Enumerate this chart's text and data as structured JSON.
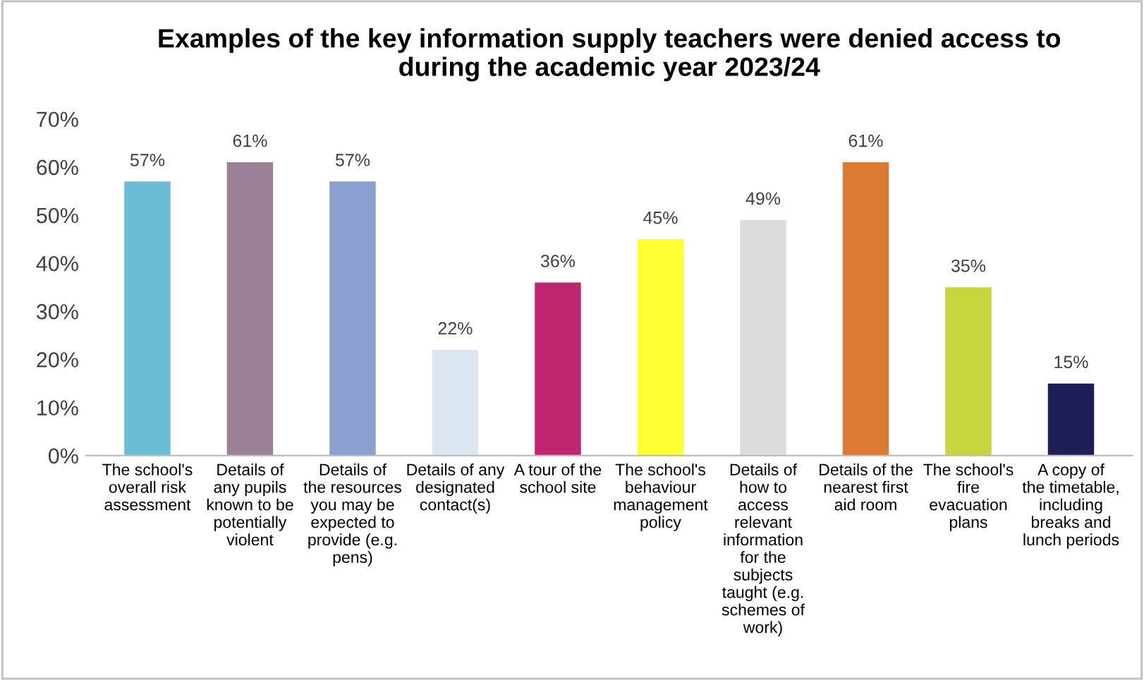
{
  "chart_data": {
    "type": "bar",
    "title": "Examples of the key information supply teachers were denied access to\nduring the academic year 2023/24",
    "categories": [
      "The school's\noverall risk\nassessment",
      "Details of\nany pupils\nknown to be\npotentially\nviolent",
      "Details of\nthe resources\nyou may be\nexpected to\nprovide (e.g.\npens)",
      "Details of any\ndesignated\ncontact(s)",
      "A tour of the\nschool site",
      "The school's\nbehaviour\nmanagement\npolicy",
      "Details of\nhow to\naccess\nrelevant\ninformation\nfor the\nsubjects\ntaught (e.g.\nschemes of\nwork)",
      "Details of the\nnearest first\naid room",
      "The school's\nfire\nevacuation\nplans",
      "A copy of\nthe timetable,\nincluding\nbreaks and\nlunch periods"
    ],
    "values": [
      57,
      61,
      57,
      22,
      36,
      45,
      49,
      61,
      35,
      15
    ],
    "value_labels": [
      "57%",
      "61%",
      "57%",
      "22%",
      "36%",
      "45%",
      "49%",
      "61%",
      "35%",
      "15%"
    ],
    "colors": [
      "#6bbcd6",
      "#9b8098",
      "#8aa0d0",
      "#dce6f2",
      "#c0266e",
      "#ffff33",
      "#dcdcdc",
      "#db7a30",
      "#c5d63f",
      "#1f1f57"
    ],
    "ylim": [
      0,
      70
    ],
    "yticks": [
      {
        "value": 0,
        "label": "0%"
      },
      {
        "value": 10,
        "label": "10%"
      },
      {
        "value": 20,
        "label": "20%"
      },
      {
        "value": 30,
        "label": "30%"
      },
      {
        "value": 40,
        "label": "40%"
      },
      {
        "value": 50,
        "label": "50%"
      },
      {
        "value": 60,
        "label": "60%"
      },
      {
        "value": 70,
        "label": "70%"
      }
    ],
    "grid": false,
    "legend": false
  }
}
